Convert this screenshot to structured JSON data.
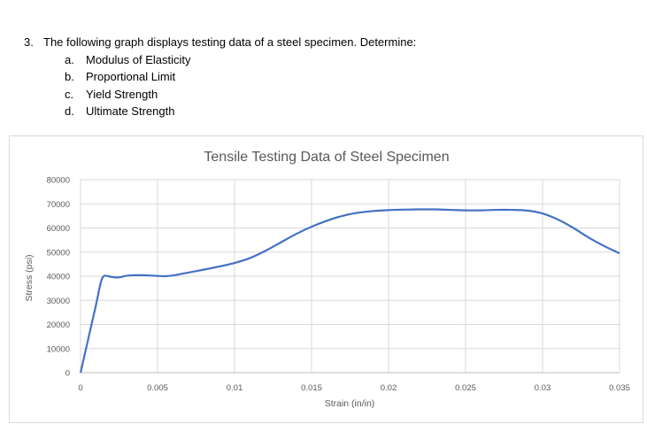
{
  "question": {
    "number": "3.",
    "prompt": "The following graph displays testing data of a steel specimen. Determine:",
    "items": [
      {
        "letter": "a.",
        "text": "Modulus of Elasticity"
      },
      {
        "letter": "b.",
        "text": "Proportional Limit"
      },
      {
        "letter": "c.",
        "text": "Yield Strength"
      },
      {
        "letter": "d.",
        "text": "Ultimate Strength"
      }
    ]
  },
  "chart_data": {
    "type": "line",
    "title": "Tensile Testing Data of Steel Specimen",
    "xlabel": "Strain (in/in)",
    "ylabel": "Stress (psi)",
    "xlim": [
      0,
      0.035
    ],
    "ylim": [
      0,
      80000
    ],
    "xticks": [
      "0",
      "0.005",
      "0.01",
      "0.015",
      "0.02",
      "0.025",
      "0.03",
      "0.035"
    ],
    "yticks": [
      "0",
      "10000",
      "20000",
      "30000",
      "40000",
      "50000",
      "60000",
      "70000",
      "80000"
    ],
    "grid": true,
    "line_color": "#4472c4",
    "series": [
      {
        "x": [
          0,
          0.0005,
          0.001,
          0.0013,
          0.0015,
          0.0018,
          0.002,
          0.0025,
          0.003,
          0.0035,
          0.004,
          0.0045,
          0.005,
          0.0055,
          0.006,
          0.007,
          0.008,
          0.009,
          0.01,
          0.011,
          0.012,
          0.013,
          0.014,
          0.015,
          0.016,
          0.017,
          0.018,
          0.019,
          0.02,
          0.021,
          0.022,
          0.023,
          0.024,
          0.025,
          0.026,
          0.027,
          0.028,
          0.029,
          0.03,
          0.031,
          0.032,
          0.033,
          0.034,
          0.035
        ],
        "y": [
          0,
          14000,
          28000,
          37000,
          40000,
          40000,
          39700,
          39500,
          40200,
          40400,
          40400,
          40300,
          40100,
          40000,
          40300,
          41500,
          42700,
          44000,
          45500,
          47500,
          50500,
          54000,
          57500,
          60500,
          63000,
          65000,
          66300,
          67000,
          67400,
          67600,
          67700,
          67700,
          67500,
          67300,
          67300,
          67500,
          67500,
          67200,
          66000,
          63500,
          60000,
          56000,
          52500,
          49500
        ]
      }
    ]
  }
}
